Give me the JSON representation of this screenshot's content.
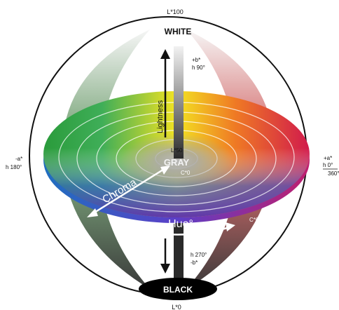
{
  "diagram": {
    "top_label": "L*100",
    "white_label": "WHITE",
    "bottom_label": "L*0",
    "black_label": "BLACK",
    "gray_label": "GRAY",
    "center_lightness_label": "L*50",
    "center_chroma_label": "C*0",
    "lightness_label": "Lightness",
    "chroma_label": "Chroma",
    "hue_label": "Hue°",
    "chroma_max_label": "C*60",
    "plus_b_label": "+b*",
    "h90_label": "h 90°",
    "minus_b_label": "-b*",
    "h270_label": "h 270°",
    "minus_a_label": "-a*",
    "h180_label": "h 180°",
    "plus_a_label": "+a*",
    "h0_label": "h 0°",
    "h360_label": "360°"
  },
  "colors": {
    "outline": "#111111",
    "center_gray": "#bcbcbc",
    "black": "#000000",
    "white": "#ffffff"
  }
}
